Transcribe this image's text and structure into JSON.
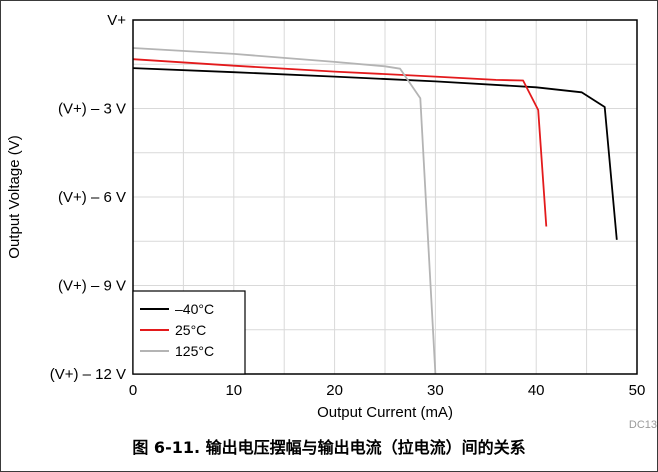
{
  "caption": "图 6-11. 输出电压摆幅与输出电流（拉电流）间的关系",
  "corner_code": "DC13",
  "chart_data": {
    "type": "line",
    "xlabel": "Output Current (mA)",
    "ylabel": "Output Voltage (V)",
    "xlim": [
      0,
      50
    ],
    "ylim": [
      -12,
      0
    ],
    "x_ticks": [
      0,
      10,
      20,
      30,
      40,
      50
    ],
    "x_tick_labels": [
      "0",
      "10",
      "20",
      "30",
      "40",
      "50"
    ],
    "y_ticks": [
      0,
      -3,
      -6,
      -9,
      -12
    ],
    "y_tick_labels": [
      "V+",
      "(V+) – 3 V",
      "(V+) – 6 V",
      "(V+) – 9 V",
      "(V+) – 12 V"
    ],
    "grid": true,
    "legend_position": "bottom-left",
    "series": [
      {
        "name": "–40°C",
        "color": "#000000",
        "x": [
          0,
          10,
          20,
          30,
          40,
          44.5,
          46.8,
          48
        ],
        "y": [
          -1.63,
          -1.77,
          -1.92,
          -2.08,
          -2.28,
          -2.45,
          -2.95,
          -7.45
        ]
      },
      {
        "name": "25°C",
        "color": "#e31a1c",
        "x": [
          0,
          10,
          20,
          30,
          36,
          38.7,
          40.2,
          41
        ],
        "y": [
          -1.33,
          -1.55,
          -1.75,
          -1.92,
          -2.03,
          -2.05,
          -3.05,
          -7.0
        ]
      },
      {
        "name": "125°C",
        "color": "#b4b4b4",
        "x": [
          0,
          10,
          20,
          25,
          26.5,
          28.5,
          30
        ],
        "y": [
          -0.95,
          -1.15,
          -1.42,
          -1.57,
          -1.65,
          -2.65,
          -12.0
        ]
      }
    ]
  }
}
